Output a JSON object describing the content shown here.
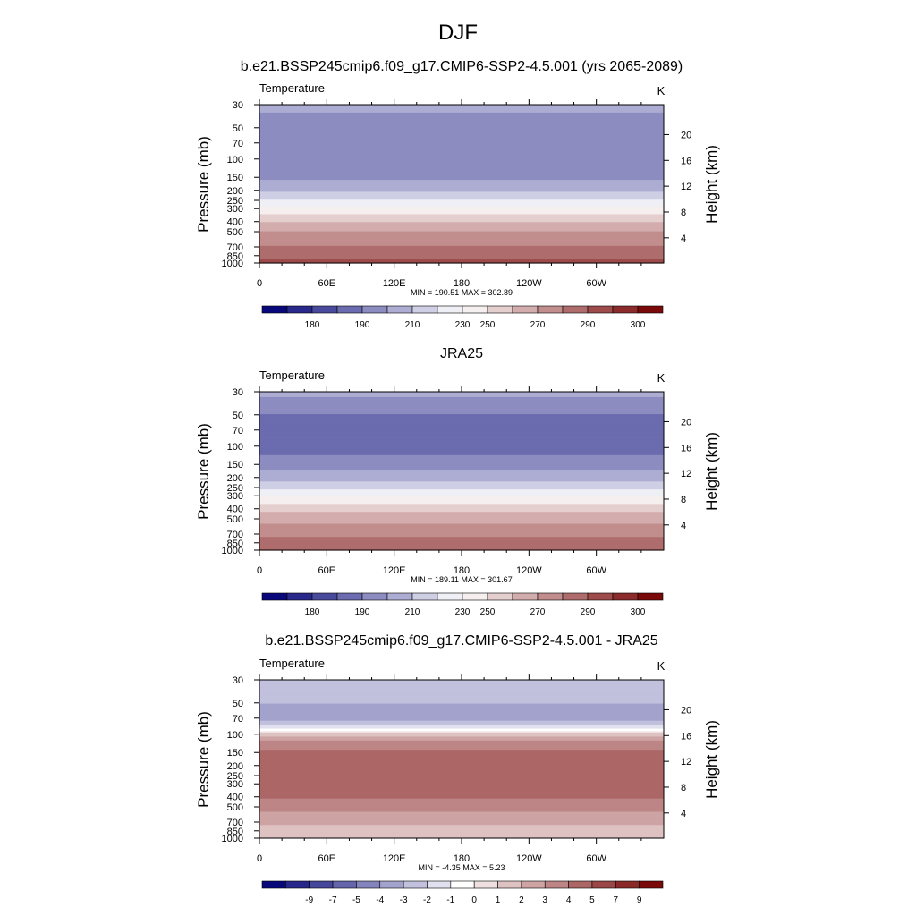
{
  "figure": {
    "title": "DJF"
  },
  "chart_data": [
    {
      "type": "heatmap",
      "title": "b.e21.BSSP245cmip6.f09_g17.CMIP6-SSP2-4.5.001 (yrs 2065-2089)",
      "variable": "Temperature",
      "units": "K",
      "xlabel": "",
      "ylabel": "Pressure (mb)",
      "y2label": "Height (km)",
      "x_ticks": [
        "0",
        "60E",
        "120E",
        "180",
        "120W",
        "60W"
      ],
      "x_range": [
        0,
        360
      ],
      "y_log_scale": true,
      "y_ticks": [
        30,
        50,
        70,
        100,
        150,
        200,
        250,
        300,
        400,
        500,
        700,
        850,
        1000
      ],
      "y_range": [
        1000,
        30
      ],
      "y2_ticks": [
        4,
        8,
        12,
        16,
        20
      ],
      "stats": "MIN = 190.51  MAX = 302.89",
      "colorbar_labels": [
        "180",
        "190",
        "210",
        "230",
        "250",
        "270",
        "290",
        "300"
      ],
      "colorbar_levels": [
        180,
        185,
        190,
        200,
        210,
        220,
        230,
        240,
        250,
        260,
        270,
        280,
        290,
        295,
        300
      ],
      "profile_pressure": [
        30,
        40,
        50,
        70,
        100,
        130,
        150,
        175,
        200,
        225,
        250,
        275,
        300,
        350,
        400,
        450,
        500,
        600,
        700,
        800,
        850,
        925,
        1000
      ],
      "profile_value": [
        215,
        206,
        202,
        200,
        201,
        204,
        208,
        213,
        218,
        225,
        232,
        238,
        243,
        251,
        259,
        265,
        270,
        276,
        281,
        285,
        287,
        290,
        293
      ],
      "colors": {
        "cold": "#08087a",
        "neutral": "#ffffff",
        "warm": "#7a0a0a"
      }
    },
    {
      "type": "heatmap",
      "title": "JRA25",
      "variable": "Temperature",
      "units": "K",
      "xlabel": "",
      "ylabel": "Pressure (mb)",
      "y2label": "Height (km)",
      "x_ticks": [
        "0",
        "60E",
        "120E",
        "180",
        "120W",
        "60W"
      ],
      "x_range": [
        0,
        360
      ],
      "y_log_scale": true,
      "y_ticks": [
        30,
        50,
        70,
        100,
        150,
        200,
        250,
        300,
        400,
        500,
        700,
        850,
        1000
      ],
      "y_range": [
        1000,
        30
      ],
      "y2_ticks": [
        4,
        8,
        12,
        16,
        20
      ],
      "stats": "MIN = 189.11  MAX = 301.67",
      "colorbar_labels": [
        "180",
        "190",
        "210",
        "230",
        "250",
        "270",
        "290",
        "300"
      ],
      "colorbar_levels": [
        180,
        185,
        190,
        200,
        210,
        220,
        230,
        240,
        250,
        260,
        270,
        280,
        290,
        295,
        300
      ],
      "profile_pressure": [
        30,
        40,
        50,
        70,
        100,
        130,
        150,
        175,
        200,
        225,
        250,
        275,
        300,
        350,
        400,
        450,
        500,
        600,
        700,
        800,
        850,
        925,
        1000
      ],
      "profile_value": [
        213,
        204,
        200,
        198,
        197,
        201,
        206,
        211,
        216,
        222,
        228,
        234,
        239,
        248,
        256,
        262,
        267,
        273,
        278,
        282,
        284,
        287,
        290
      ],
      "colors": {
        "cold": "#08087a",
        "neutral": "#ffffff",
        "warm": "#7a0a0a"
      }
    },
    {
      "type": "heatmap",
      "title": "b.e21.BSSP245cmip6.f09_g17.CMIP6-SSP2-4.5.001 - JRA25",
      "variable": "Temperature",
      "units": "K",
      "xlabel": "",
      "ylabel": "Pressure (mb)",
      "y2label": "Height (km)",
      "x_ticks": [
        "0",
        "60E",
        "120E",
        "180",
        "120W",
        "60W"
      ],
      "x_range": [
        0,
        360
      ],
      "y_log_scale": true,
      "y_ticks": [
        30,
        50,
        70,
        100,
        150,
        200,
        250,
        300,
        400,
        500,
        700,
        850,
        1000
      ],
      "y_range": [
        1000,
        30
      ],
      "y2_ticks": [
        4,
        8,
        12,
        16,
        20
      ],
      "stats": "MIN =  -4.35  MAX =   5.23",
      "colorbar_labels": [
        "-9",
        "-7",
        "-5",
        "-4",
        "-3",
        "-2",
        "-1",
        "0",
        "1",
        "2",
        "3",
        "4",
        "5",
        "7",
        "9"
      ],
      "colorbar_levels": [
        -11,
        -9,
        -7,
        -5,
        -4,
        -3,
        -2,
        -1,
        0,
        1,
        2,
        3,
        4,
        5,
        7,
        9
      ],
      "profile_pressure": [
        30,
        45,
        55,
        70,
        85,
        100,
        120,
        150,
        200,
        300,
        400,
        500,
        600,
        700,
        850,
        1000
      ],
      "profile_value": [
        -2.0,
        -2.6,
        -3.3,
        -3.6,
        -1.5,
        1.5,
        3.3,
        4.3,
        4.5,
        4.5,
        4.1,
        3.3,
        2.8,
        2.2,
        1.6,
        1.4
      ],
      "colors": {
        "cold": "#08087a",
        "neutral": "#ffffff",
        "warm": "#7a0a0a"
      }
    }
  ]
}
